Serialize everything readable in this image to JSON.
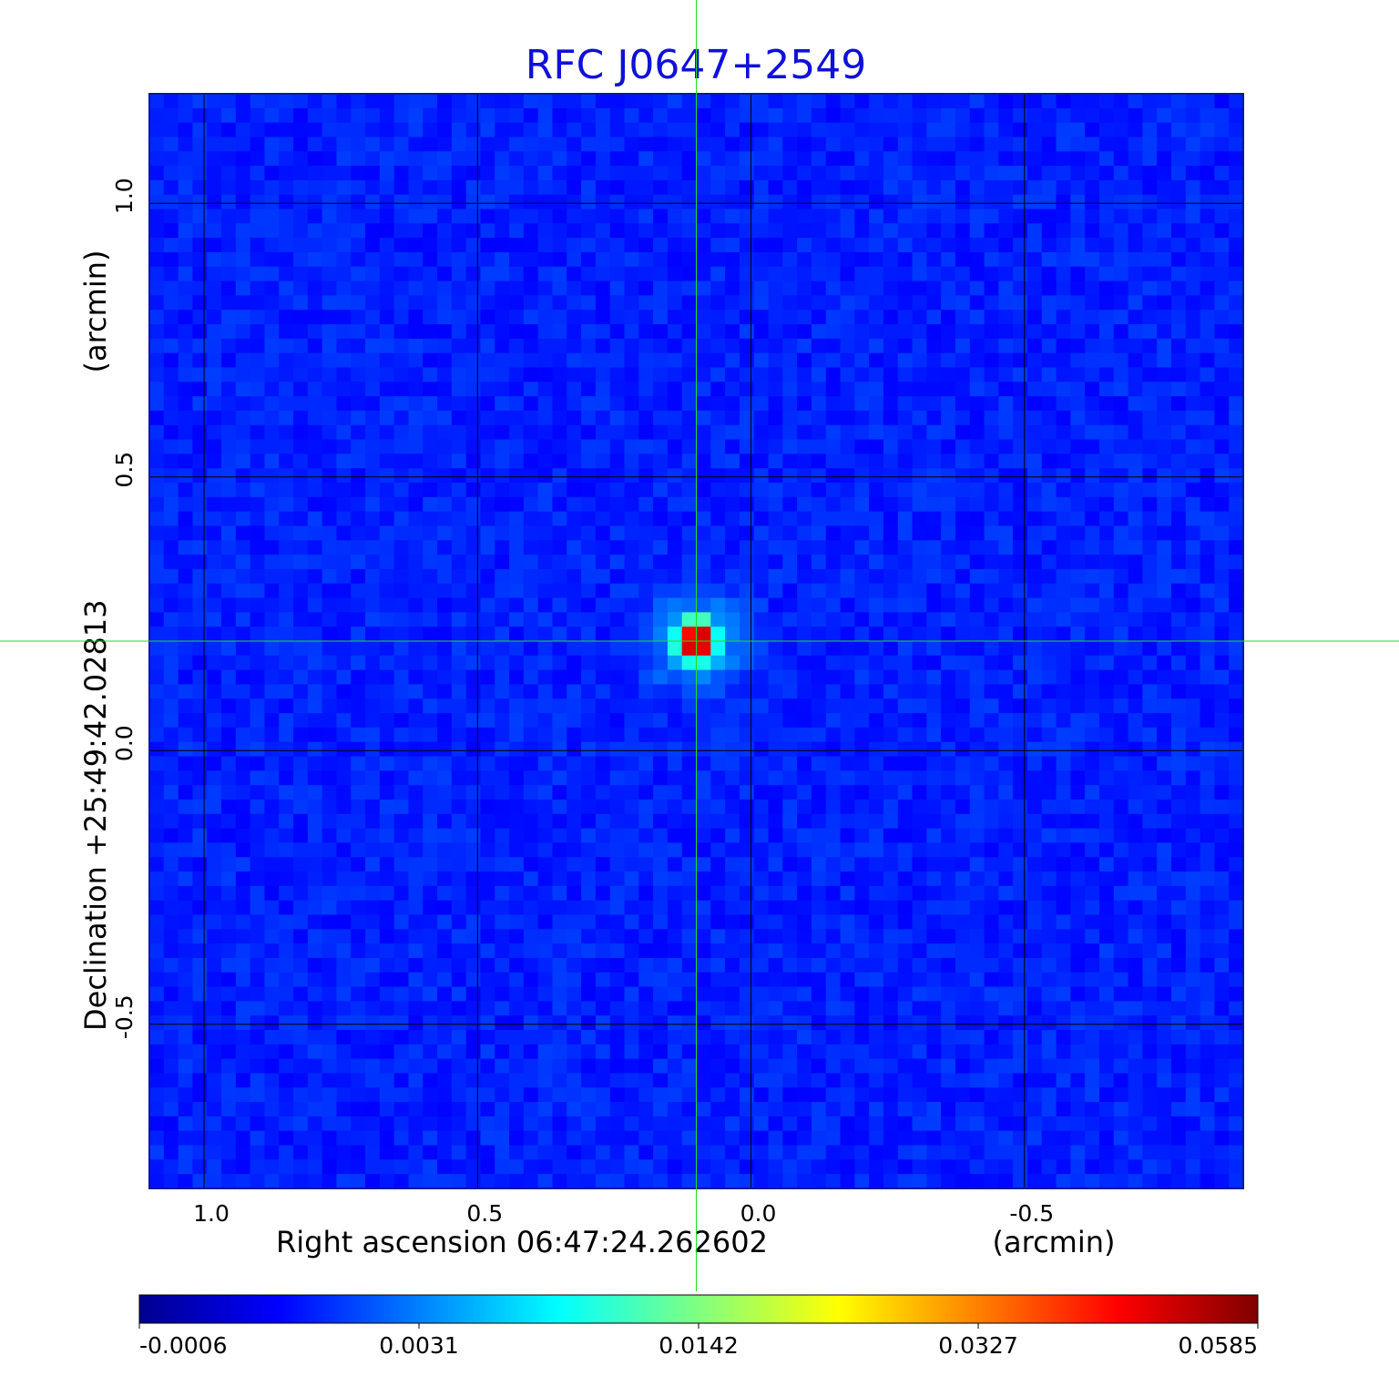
{
  "chart_data": {
    "type": "heatmap",
    "title": "RFC J0647+2549",
    "xlabel": "Right ascension  06:47:24.262602",
    "x_unit": "(arcmin)",
    "ylabel": "Declination  +25:49:42.02813",
    "y_unit": "(arcmin)",
    "x_axis": {
      "reversed": true,
      "xlim": [
        1.1,
        -0.9
      ],
      "ticks": [
        1.0,
        0.5,
        0.0,
        -0.5
      ],
      "tick_labels": [
        "1.0",
        "0.5",
        "0.0",
        "-0.5"
      ]
    },
    "y_axis": {
      "ylim": [
        -0.8,
        1.2
      ],
      "ticks": [
        1.0,
        0.5,
        0.0,
        -0.5
      ],
      "tick_labels": [
        "1.0",
        "0.5",
        "0.0",
        "-0.5"
      ]
    },
    "grid": true,
    "grid_color": "#000000",
    "crosshair": {
      "x": 0.1,
      "y": 0.2,
      "color": "#22dd22"
    },
    "source": {
      "x": 0.1,
      "y": 0.2,
      "peak": 0.0585
    },
    "background_level": -0.0006,
    "colormap": "jet",
    "colorbar": {
      "ticks": [
        -0.0006,
        0.0031,
        0.0142,
        0.0327,
        0.0585
      ],
      "tick_labels": [
        "-0.0006",
        "0.0031",
        "0.0142",
        "0.0327",
        "0.0585"
      ],
      "stops": [
        "#00008f",
        "#0000ff",
        "#0080ff",
        "#00ffff",
        "#80ff80",
        "#ffff00",
        "#ff8000",
        "#ff0000",
        "#800000"
      ]
    }
  }
}
